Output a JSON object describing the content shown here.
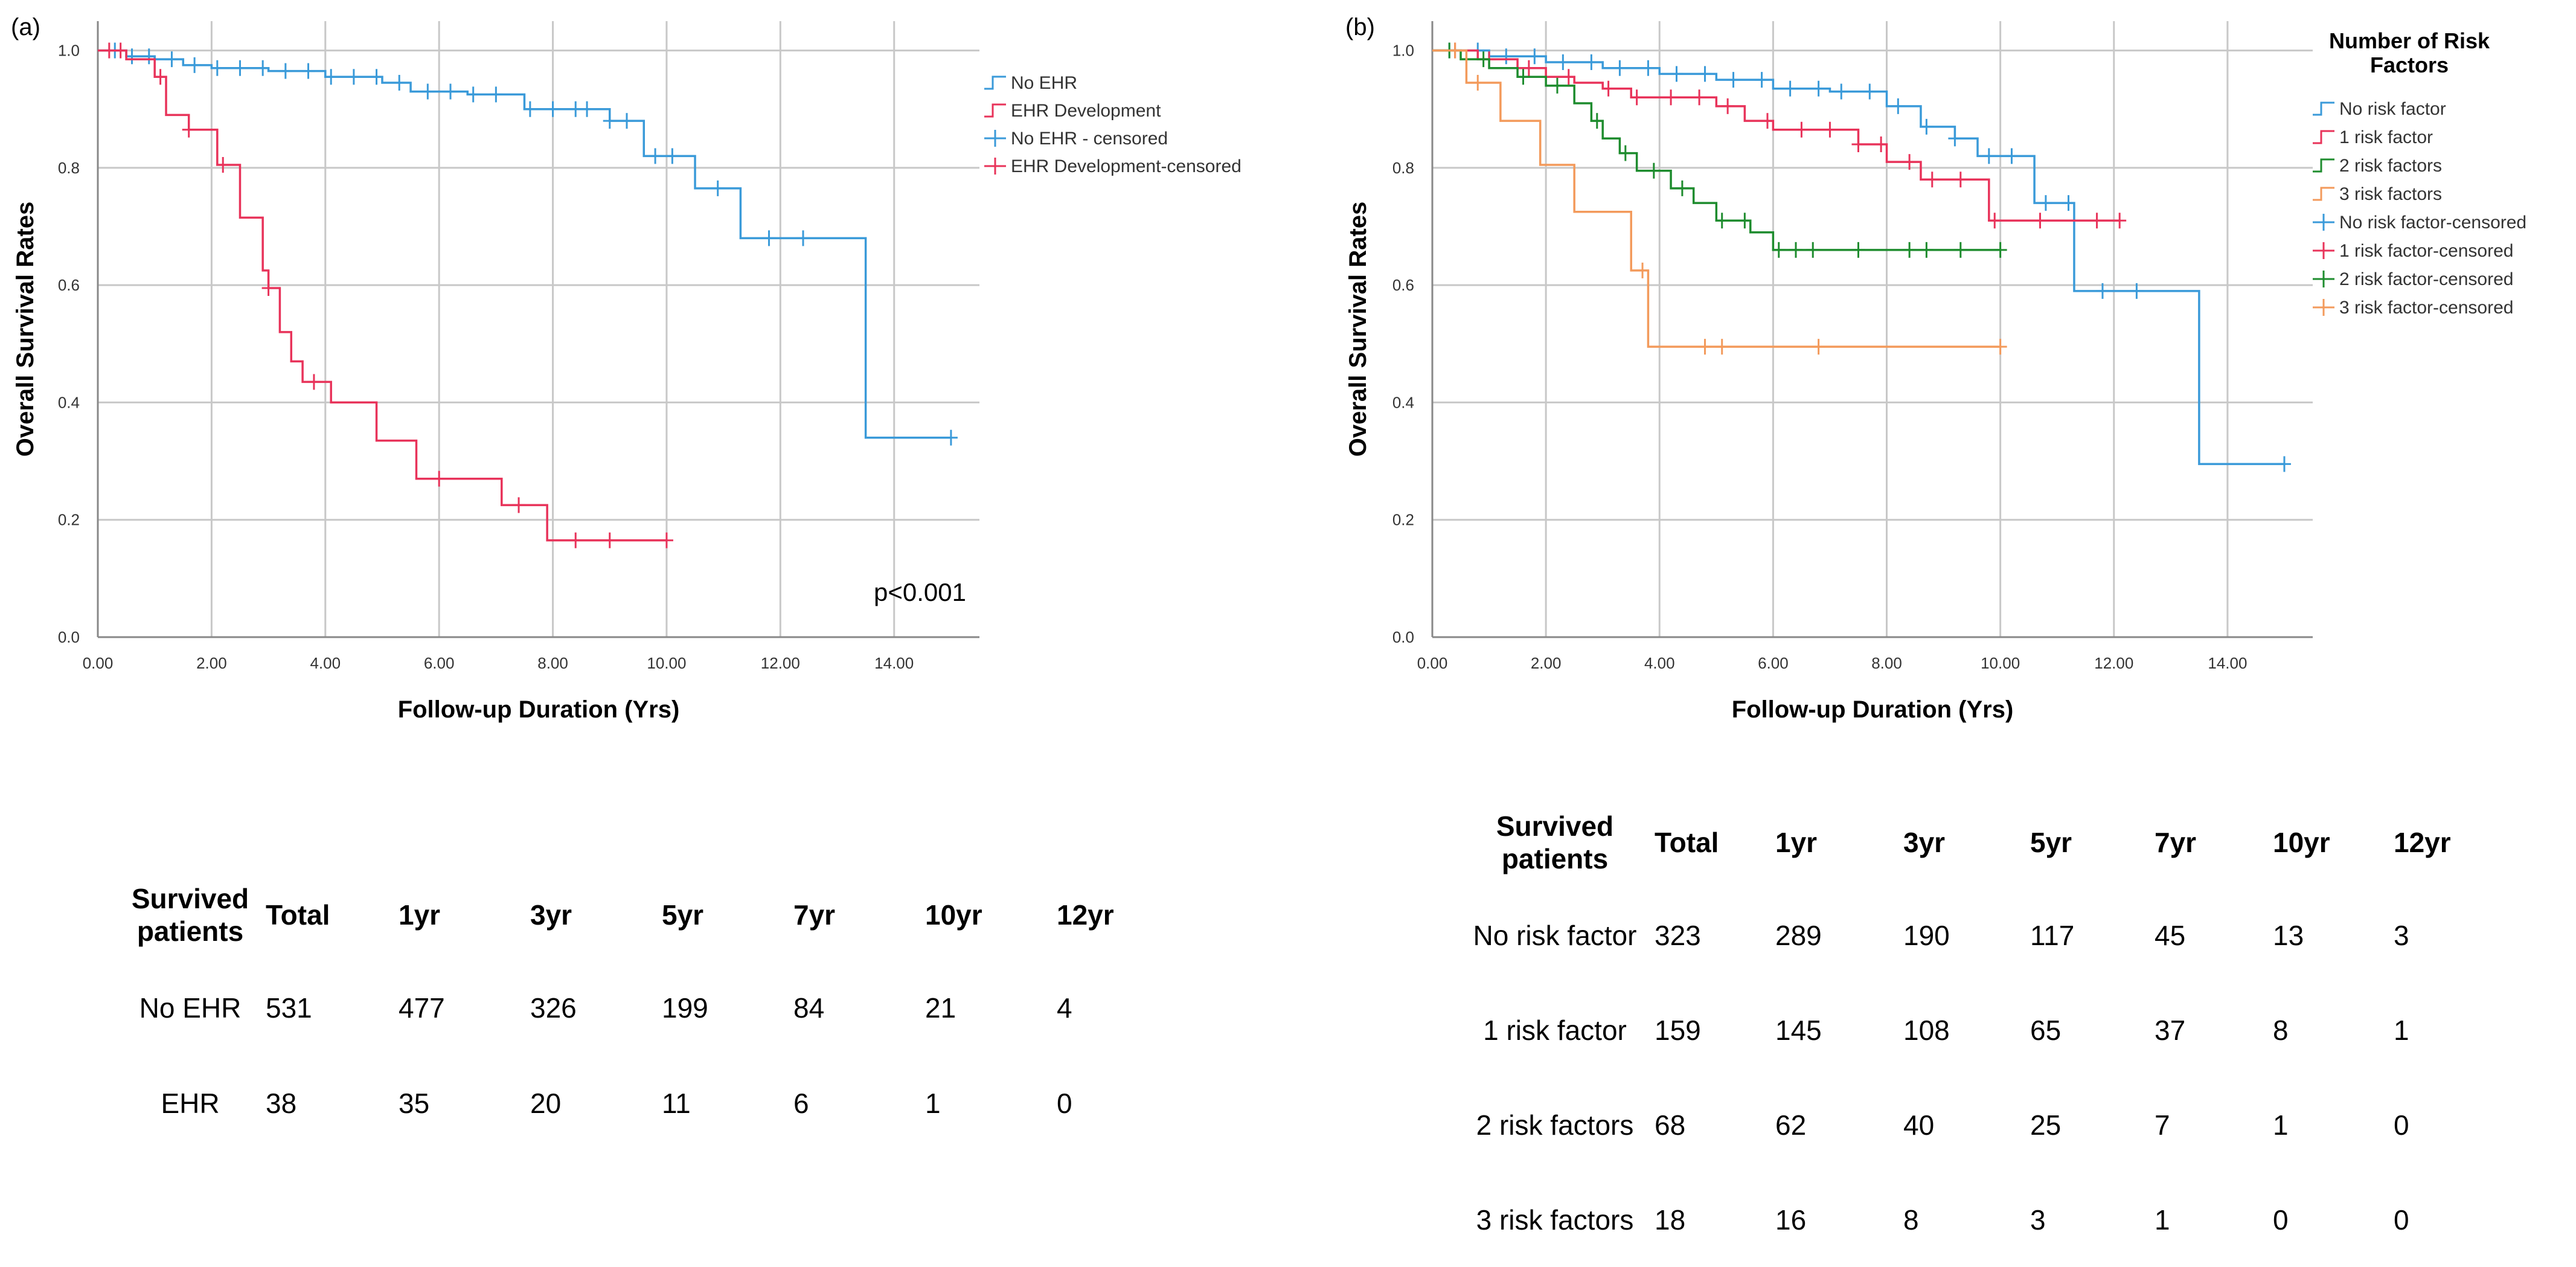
{
  "chart_data": [
    {
      "type": "line",
      "subtype": "kaplan-meier",
      "panel_label": "(a)",
      "xlabel": "Follow-up Duration (Yrs)",
      "ylabel": "Overall Survival Rates",
      "xlim": [
        0,
        15.5
      ],
      "ylim": [
        0,
        1.05
      ],
      "x_ticks": [
        "0.00",
        "2.00",
        "4.00",
        "6.00",
        "8.00",
        "10.00",
        "12.00",
        "14.00"
      ],
      "y_ticks": [
        "0.0",
        "0.2",
        "0.4",
        "0.6",
        "0.8",
        "1.0"
      ],
      "grid": true,
      "annotation": "p<0.001",
      "legend": [
        "No EHR",
        "EHR Development",
        "No EHR - censored",
        "EHR Development-censored"
      ],
      "legend_position": "top-right",
      "series": [
        {
          "name": "No EHR",
          "color": "#3a9ad9",
          "x": [
            0,
            0.5,
            1.0,
            1.5,
            2.0,
            3.0,
            4.0,
            5.0,
            5.5,
            6.5,
            7.5,
            8.0,
            9.0,
            9.6,
            10.5,
            11.3,
            13.5,
            15.0
          ],
          "y": [
            1.0,
            0.99,
            0.985,
            0.975,
            0.97,
            0.965,
            0.955,
            0.945,
            0.93,
            0.925,
            0.9,
            0.9,
            0.88,
            0.82,
            0.765,
            0.68,
            0.34,
            0.34
          ],
          "censored_x": [
            0.3,
            0.6,
            0.9,
            1.3,
            1.7,
            2.1,
            2.5,
            2.9,
            3.3,
            3.7,
            4.1,
            4.5,
            4.9,
            5.3,
            5.8,
            6.2,
            6.6,
            7.0,
            7.6,
            8.0,
            8.4,
            8.6,
            9.0,
            9.3,
            9.8,
            10.1,
            10.9,
            11.8,
            12.4,
            15.0
          ]
        },
        {
          "name": "EHR Development",
          "color": "#e8335a",
          "x": [
            0,
            0.5,
            1.0,
            1.2,
            1.6,
            2.1,
            2.5,
            2.9,
            3.0,
            3.2,
            3.4,
            3.6,
            4.1,
            4.9,
            5.6,
            6.0,
            7.1,
            7.9,
            10.0
          ],
          "y": [
            1.0,
            0.985,
            0.955,
            0.89,
            0.865,
            0.805,
            0.715,
            0.625,
            0.595,
            0.52,
            0.47,
            0.435,
            0.4,
            0.335,
            0.27,
            0.27,
            0.225,
            0.165,
            0.165
          ],
          "censored_x": [
            0.2,
            0.4,
            1.1,
            1.6,
            2.2,
            3.0,
            3.8,
            6.0,
            7.4,
            8.4,
            9.0,
            10.0
          ]
        }
      ]
    },
    {
      "type": "line",
      "subtype": "kaplan-meier",
      "panel_label": "(b)",
      "xlabel": "Follow-up Duration (Yrs)",
      "ylabel": "Overall Survival Rates",
      "xlim": [
        0,
        15.5
      ],
      "ylim": [
        0,
        1.05
      ],
      "x_ticks": [
        "0.00",
        "2.00",
        "4.00",
        "6.00",
        "8.00",
        "10.00",
        "12.00",
        "14.00"
      ],
      "y_ticks": [
        "0.0",
        "0.2",
        "0.4",
        "0.6",
        "0.8",
        "1.0"
      ],
      "grid": true,
      "legend_title": "Number of Risk Factors",
      "legend_title_lines": [
        "Number of Risk",
        "Factors"
      ],
      "legend": [
        "No risk factor",
        "1 risk factor",
        "2 risk factors",
        "3 risk factors",
        "No risk factor-censored",
        "1 risk factor-censored",
        "2 risk factor-censored",
        "3 risk factor-censored"
      ],
      "legend_position": "right",
      "series": [
        {
          "name": "No risk factor",
          "color": "#3a9ad9",
          "x": [
            0,
            1.0,
            2.0,
            3.0,
            4.0,
            5.0,
            6.0,
            7.0,
            8.0,
            8.6,
            9.2,
            9.6,
            10.6,
            11.3,
            13.5,
            15.0
          ],
          "y": [
            1.0,
            0.99,
            0.98,
            0.97,
            0.96,
            0.95,
            0.935,
            0.93,
            0.905,
            0.87,
            0.85,
            0.82,
            0.74,
            0.59,
            0.295,
            0.295
          ],
          "censored_x": [
            0.3,
            0.8,
            1.3,
            1.8,
            2.3,
            2.8,
            3.3,
            3.8,
            4.3,
            4.8,
            5.3,
            5.8,
            6.3,
            6.8,
            7.2,
            7.7,
            8.2,
            8.7,
            9.2,
            9.8,
            10.2,
            10.8,
            11.2,
            11.8,
            12.4,
            15.0
          ]
        },
        {
          "name": "1 risk factor",
          "color": "#e8335a",
          "x": [
            0,
            0.8,
            1.5,
            2.0,
            2.5,
            3.0,
            3.5,
            4.0,
            5.0,
            5.5,
            6.0,
            7.0,
            7.5,
            8.0,
            8.3,
            8.6,
            9.2,
            9.8,
            12.1
          ],
          "y": [
            1.0,
            0.985,
            0.97,
            0.955,
            0.945,
            0.935,
            0.92,
            0.92,
            0.905,
            0.88,
            0.865,
            0.865,
            0.84,
            0.81,
            0.81,
            0.78,
            0.78,
            0.71,
            0.71
          ],
          "censored_x": [
            0.4,
            1.0,
            1.7,
            2.4,
            3.1,
            3.6,
            4.2,
            4.7,
            5.2,
            5.9,
            6.5,
            7.0,
            7.5,
            7.9,
            8.4,
            8.8,
            9.3,
            9.9,
            10.7,
            11.7,
            12.1
          ]
        },
        {
          "name": "2 risk factors",
          "color": "#1e8c2e",
          "x": [
            0,
            0.5,
            1.0,
            1.5,
            2.0,
            2.5,
            2.8,
            3.0,
            3.3,
            3.6,
            4.2,
            4.6,
            5.0,
            5.6,
            6.0,
            10.0
          ],
          "y": [
            1.0,
            0.985,
            0.97,
            0.955,
            0.94,
            0.91,
            0.88,
            0.85,
            0.825,
            0.795,
            0.765,
            0.74,
            0.71,
            0.69,
            0.66,
            0.66
          ],
          "censored_x": [
            0.3,
            0.9,
            1.6,
            2.2,
            2.9,
            3.4,
            3.9,
            4.4,
            5.1,
            5.5,
            6.1,
            6.4,
            6.7,
            7.5,
            8.4,
            8.7,
            9.3,
            10.0
          ]
        },
        {
          "name": "3 risk factors",
          "color": "#f39a5b",
          "x": [
            0,
            0.6,
            1.2,
            1.9,
            2.5,
            3.5,
            3.8,
            10.0
          ],
          "y": [
            1.0,
            0.945,
            0.88,
            0.805,
            0.725,
            0.625,
            0.495,
            0.495
          ],
          "censored_x": [
            0.4,
            0.8,
            3.7,
            4.8,
            5.1,
            6.8,
            10.0
          ]
        }
      ]
    }
  ],
  "tableA": {
    "headers": [
      "Survived patients",
      "Total",
      "1yr",
      "3yr",
      "5yr",
      "7yr",
      "10yr",
      "12yr"
    ],
    "rows": [
      [
        "No EHR",
        "531",
        "477",
        "326",
        "199",
        "84",
        "21",
        "4"
      ],
      [
        "EHR",
        "38",
        "35",
        "20",
        "11",
        "6",
        "1",
        "0"
      ]
    ]
  },
  "tableB": {
    "headers": [
      "Survived patients",
      "Total",
      "1yr",
      "3yr",
      "5yr",
      "7yr",
      "10yr",
      "12yr"
    ],
    "rows": [
      [
        "No risk factor",
        "323",
        "289",
        "190",
        "117",
        "45",
        "13",
        "3"
      ],
      [
        "1 risk factor",
        "159",
        "145",
        "108",
        "65",
        "37",
        "8",
        "1"
      ],
      [
        "2 risk factors",
        "68",
        "62",
        "40",
        "25",
        "7",
        "1",
        "0"
      ],
      [
        "3 risk factors",
        "18",
        "16",
        "8",
        "3",
        "1",
        "0",
        "0"
      ]
    ]
  }
}
